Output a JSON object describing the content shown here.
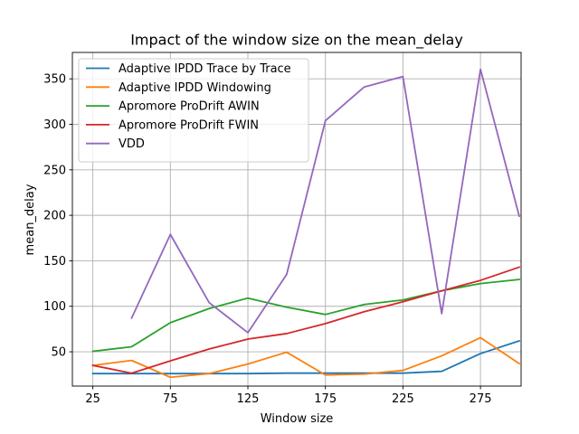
{
  "chart_data": {
    "type": "line",
    "title": "Impact of the window size on the mean_delay",
    "xlabel": "Window size",
    "ylabel": "mean_delay",
    "xlim": [
      11.8,
      301.2
    ],
    "ylim": [
      12.3,
      379.0
    ],
    "x_ticks": [
      25,
      75,
      125,
      175,
      225,
      275
    ],
    "y_ticks": [
      50,
      100,
      150,
      200,
      250,
      300,
      350
    ],
    "grid": true,
    "legend_position": "upper-left",
    "series": [
      {
        "name": "Adaptive IPDD Trace by Trace",
        "color": "#1f77b4",
        "points": [
          [
            25,
            26
          ],
          [
            50,
            26
          ],
          [
            75,
            26
          ],
          [
            100,
            26
          ],
          [
            125,
            26
          ],
          [
            150,
            26.5
          ],
          [
            175,
            26.5
          ],
          [
            200,
            26.5
          ],
          [
            225,
            26.5
          ],
          [
            250,
            28.5
          ],
          [
            275,
            48
          ],
          [
            300,
            62
          ]
        ]
      },
      {
        "name": "Adaptive IPDD Windowing",
        "color": "#ff7f0e",
        "points": [
          [
            25,
            35
          ],
          [
            50,
            40.5
          ],
          [
            75,
            22
          ],
          [
            100,
            26
          ],
          [
            125,
            36.5
          ],
          [
            150,
            49.5
          ],
          [
            175,
            24.5
          ],
          [
            200,
            25.5
          ],
          [
            225,
            29.5
          ],
          [
            250,
            45.5
          ],
          [
            275,
            65.5
          ],
          [
            300,
            37
          ]
        ]
      },
      {
        "name": "Apromore ProDrift AWIN",
        "color": "#2ca02c",
        "points": [
          [
            25,
            50.5
          ],
          [
            50,
            55.5
          ],
          [
            75,
            82
          ],
          [
            100,
            97.5
          ],
          [
            125,
            109
          ],
          [
            150,
            99
          ],
          [
            175,
            91
          ],
          [
            200,
            102
          ],
          [
            225,
            107
          ],
          [
            250,
            117
          ],
          [
            275,
            125
          ],
          [
            300,
            129.5
          ]
        ]
      },
      {
        "name": "Apromore ProDrift FWIN",
        "color": "#d62728",
        "points": [
          [
            25,
            35
          ],
          [
            50,
            26.5
          ],
          [
            75,
            40
          ],
          [
            100,
            53
          ],
          [
            125,
            64
          ],
          [
            150,
            70
          ],
          [
            175,
            81
          ],
          [
            200,
            94
          ],
          [
            225,
            105
          ],
          [
            250,
            117
          ],
          [
            275,
            128.5
          ],
          [
            300,
            143
          ]
        ]
      },
      {
        "name": "VDD",
        "color": "#9467bd",
        "points": [
          [
            50,
            87
          ],
          [
            75,
            179
          ],
          [
            100,
            104
          ],
          [
            125,
            71
          ],
          [
            150,
            135
          ],
          [
            175,
            304
          ],
          [
            200,
            341
          ],
          [
            225,
            352.5
          ],
          [
            250,
            92
          ],
          [
            275,
            360.5
          ],
          [
            300,
            199
          ]
        ]
      }
    ]
  }
}
